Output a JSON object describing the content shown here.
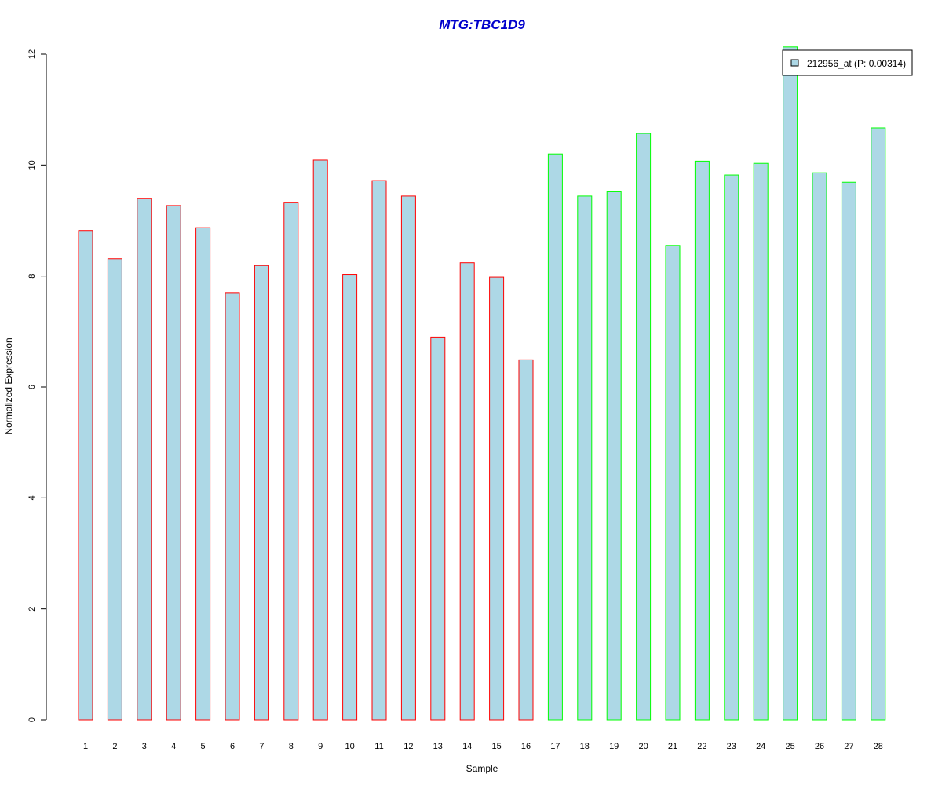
{
  "chart_data": {
    "type": "bar",
    "title": "MTG:TBC1D9",
    "title_color": "#0000CC",
    "xlabel": "Sample",
    "ylabel": "Normalized Expression",
    "ylim": [
      0,
      12
    ],
    "yticks": [
      "0",
      "2",
      "4",
      "6",
      "8",
      "10",
      "12"
    ],
    "categories": [
      "1",
      "2",
      "3",
      "4",
      "5",
      "6",
      "7",
      "8",
      "9",
      "10",
      "11",
      "12",
      "13",
      "14",
      "15",
      "16",
      "17",
      "18",
      "19",
      "20",
      "21",
      "22",
      "23",
      "24",
      "25",
      "26",
      "27",
      "28"
    ],
    "values": [
      8.82,
      8.31,
      9.4,
      9.27,
      8.87,
      7.7,
      8.19,
      9.33,
      10.09,
      8.03,
      9.72,
      9.44,
      6.9,
      8.24,
      7.98,
      6.49,
      10.2,
      9.44,
      9.53,
      10.57,
      8.55,
      10.07,
      9.82,
      10.03,
      12.13,
      9.86,
      9.69,
      10.67
    ],
    "groups": [
      0,
      0,
      0,
      0,
      0,
      0,
      0,
      0,
      0,
      0,
      0,
      0,
      0,
      0,
      0,
      0,
      1,
      1,
      1,
      1,
      1,
      1,
      1,
      1,
      1,
      1,
      1,
      1
    ],
    "bar_fill": "#ADD8E6",
    "group_colors": [
      "#FF0000",
      "#00FF00"
    ],
    "legend": {
      "label": "212956_at (P: 0.00314)",
      "placement": "top-right"
    },
    "grid": false
  }
}
